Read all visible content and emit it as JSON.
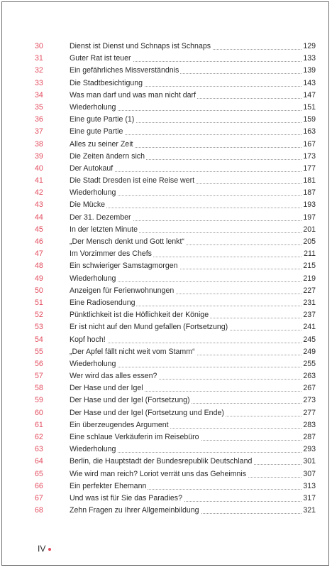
{
  "toc": [
    {
      "num": "30",
      "title": "Dienst ist Dienst und Schnaps ist Schnaps",
      "page": "129"
    },
    {
      "num": "31",
      "title": "Guter Rat ist teuer",
      "page": "133"
    },
    {
      "num": "32",
      "title": "Ein gefährliches Missverständnis",
      "page": "139"
    },
    {
      "num": "33",
      "title": "Die Stadtbesichtigung",
      "page": "143"
    },
    {
      "num": "34",
      "title": "Was man darf und was man nicht darf",
      "page": "147"
    },
    {
      "num": "35",
      "title": "Wiederholung",
      "page": "151"
    },
    {
      "num": "36",
      "title": "Eine gute Partie (1)",
      "page": "159"
    },
    {
      "num": "37",
      "title": "Eine gute Partie",
      "page": "163"
    },
    {
      "num": "38",
      "title": "Alles zu seiner Zeit",
      "page": "167"
    },
    {
      "num": "39",
      "title": "Die Zeiten ändern sich",
      "page": "173"
    },
    {
      "num": "40",
      "title": "Der Autokauf",
      "page": "177"
    },
    {
      "num": "41",
      "title": "Die Stadt Dresden ist eine Reise wert",
      "page": "181"
    },
    {
      "num": "42",
      "title": "Wiederholung",
      "page": "187"
    },
    {
      "num": "43",
      "title": "Die Mücke",
      "page": "193"
    },
    {
      "num": "44",
      "title": "Der 31. Dezember",
      "page": "197"
    },
    {
      "num": "45",
      "title": "In der letzten Minute",
      "page": "201"
    },
    {
      "num": "46",
      "title": "„Der Mensch denkt und Gott lenkt“",
      "page": "205"
    },
    {
      "num": "47",
      "title": "Im Vorzimmer des Chefs",
      "page": "211"
    },
    {
      "num": "48",
      "title": "Ein schwieriger Samstagmorgen",
      "page": "215"
    },
    {
      "num": "49",
      "title": "Wiederholung",
      "page": "219"
    },
    {
      "num": "50",
      "title": "Anzeigen für Ferienwohnungen",
      "page": "227"
    },
    {
      "num": "51",
      "title": "Eine Radiosendung",
      "page": "231"
    },
    {
      "num": "52",
      "title": "Pünktlichkeit ist die Höflichkeit der Könige",
      "page": "237"
    },
    {
      "num": "53",
      "title": "Er ist nicht auf den Mund gefallen (Fortsetzung)",
      "page": "241"
    },
    {
      "num": "54",
      "title": "Kopf hoch!",
      "page": "245"
    },
    {
      "num": "55",
      "title": "„Der Apfel fällt nicht weit vom Stamm“",
      "page": "249"
    },
    {
      "num": "56",
      "title": "Wiederholung",
      "page": "255"
    },
    {
      "num": "57",
      "title": "Wer wird das alles essen?",
      "page": "263"
    },
    {
      "num": "58",
      "title": "Der Hase und der Igel",
      "page": "267"
    },
    {
      "num": "59",
      "title": "Der Hase und der Igel (Fortsetzung)",
      "page": "273"
    },
    {
      "num": "60",
      "title": "Der Hase und der Igel (Fortsetzung und Ende)",
      "page": "277"
    },
    {
      "num": "61",
      "title": "Ein überzeugendes Argument",
      "page": "283"
    },
    {
      "num": "62",
      "title": "Eine schlaue Verkäuferin im Reisebüro",
      "page": "287"
    },
    {
      "num": "63",
      "title": "Wiederholung",
      "page": "293"
    },
    {
      "num": "64",
      "title": "Berlin, die Hauptstadt der Bundesrepublik Deutschland",
      "page": "301"
    },
    {
      "num": "65",
      "title": "Wie wird man reich? Loriot verrät uns das Geheimnis",
      "page": "307"
    },
    {
      "num": "66",
      "title": "Ein perfekter Ehemann",
      "page": "313"
    },
    {
      "num": "67",
      "title": "Und was ist für Sie das Paradies?",
      "page": "317"
    },
    {
      "num": "68",
      "title": "Zehn Fragen zu Ihrer Allgemeinbildung",
      "page": "321"
    }
  ],
  "footer": {
    "page_label": "IV"
  },
  "colors": {
    "accent": "#e24a5c",
    "text": "#2a2a2a"
  }
}
